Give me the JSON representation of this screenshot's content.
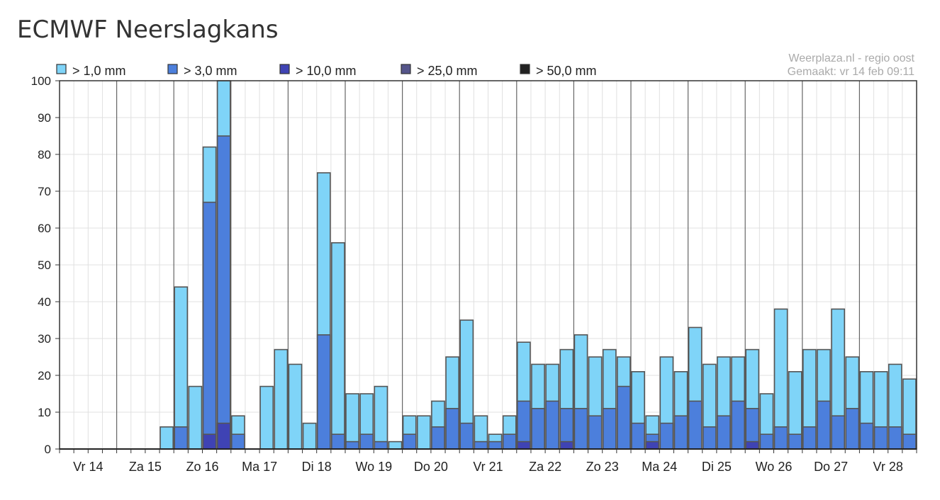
{
  "page": {
    "title": "ECMWF Neerslagkans"
  },
  "source": {
    "line1": "Weerplaza.nl - regio oost",
    "line2": "Gemaakt: vr 14 feb 09:11"
  },
  "chart_data": {
    "type": "bar",
    "stacked": "overlay",
    "ylim": [
      0,
      100
    ],
    "yticks": [
      0,
      10,
      20,
      30,
      40,
      50,
      60,
      70,
      80,
      90,
      100
    ],
    "grid": true,
    "legend_position": "top-left",
    "day_labels": [
      "Vr 14",
      "Za 15",
      "Zo 16",
      "Ma 17",
      "Di 18",
      "Wo 19",
      "Do 20",
      "Vr 21",
      "Za 22",
      "Zo 23",
      "Ma 24",
      "Di 25",
      "Wo 26",
      "Do 27",
      "Vr 28"
    ],
    "series": [
      {
        "name": "> 1,0 mm",
        "color": "#7fd4f8",
        "values": [
          0,
          0,
          0,
          0,
          0,
          0,
          0,
          6,
          44,
          17,
          82,
          100,
          9,
          0,
          17,
          27,
          23,
          7,
          75,
          56,
          15,
          15,
          17,
          2,
          9,
          9,
          13,
          25,
          35,
          9,
          4,
          9,
          29,
          23,
          23,
          27,
          31,
          25,
          27,
          25,
          21,
          9,
          25,
          21,
          33,
          23,
          25,
          25,
          27,
          15,
          38,
          21,
          27,
          27,
          38,
          25,
          21,
          21,
          23,
          19
        ]
      },
      {
        "name": "> 3,0 mm",
        "color": "#4c7fdc",
        "values": [
          0,
          0,
          0,
          0,
          0,
          0,
          0,
          0,
          6,
          0,
          67,
          85,
          4,
          0,
          0,
          0,
          0,
          0,
          31,
          4,
          2,
          4,
          2,
          0,
          4,
          0,
          6,
          11,
          7,
          2,
          2,
          4,
          13,
          11,
          13,
          11,
          11,
          9,
          11,
          17,
          7,
          4,
          7,
          9,
          13,
          6,
          9,
          13,
          11,
          4,
          6,
          4,
          6,
          13,
          9,
          11,
          7,
          6,
          6,
          4
        ]
      },
      {
        "name": "> 10,0 mm",
        "color": "#3f43b4",
        "values": [
          0,
          0,
          0,
          0,
          0,
          0,
          0,
          0,
          0,
          0,
          4,
          7,
          0,
          0,
          0,
          0,
          0,
          0,
          0,
          0,
          0,
          0,
          0,
          0,
          0,
          0,
          0,
          0,
          0,
          0,
          0,
          0,
          2,
          0,
          0,
          2,
          0,
          0,
          0,
          0,
          0,
          2,
          0,
          0,
          0,
          0,
          0,
          0,
          2,
          0,
          0,
          0,
          0,
          0,
          0,
          0,
          0,
          0,
          0,
          0
        ]
      },
      {
        "name": "> 25,0 mm",
        "color": "#55558a",
        "values": []
      },
      {
        "name": "> 50,0 mm",
        "color": "#222222",
        "values": []
      }
    ]
  }
}
